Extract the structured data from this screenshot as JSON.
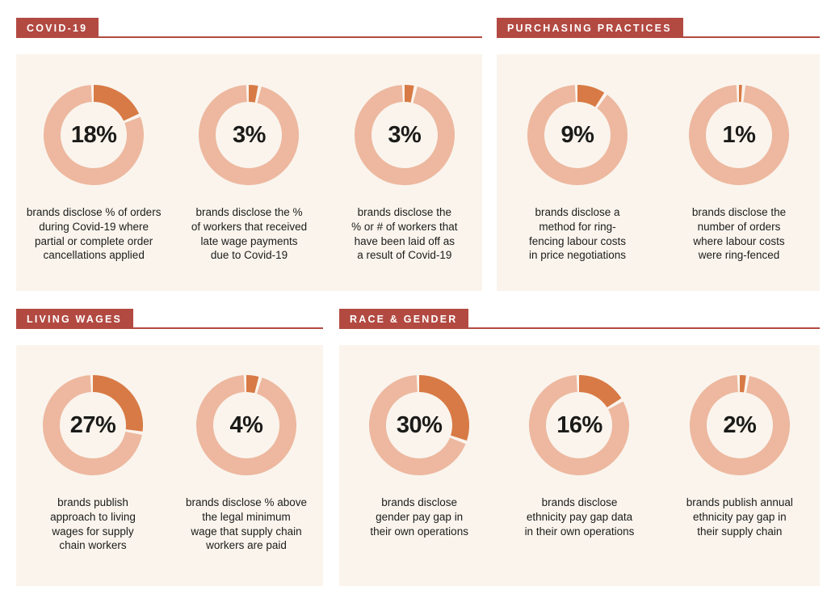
{
  "colors": {
    "accent_red": "#b24a42",
    "panel_background": "#faf4ed",
    "ring_light": "#edb89f",
    "ring_dark": "#d87a45",
    "text": "#1c1c1a"
  },
  "chart_data": [
    {
      "type": "pie",
      "variant": "donut",
      "title": "COVID-19",
      "values_pct": [
        18,
        3,
        3
      ],
      "labels": [
        "18%",
        "3%",
        "3%"
      ],
      "descriptions": [
        "brands disclose % of orders\nduring Covid-19 where\npartial or complete order\ncancellations applied",
        "brands disclose the %\nof workers that received\nlate wage payments\ndue to Covid-19",
        "brands disclose the\n% or # of workers that\nhave been laid off as\na result of Covid-19"
      ]
    },
    {
      "type": "pie",
      "variant": "donut",
      "title": "PURCHASING PRACTICES",
      "values_pct": [
        9,
        1
      ],
      "labels": [
        "9%",
        "1%"
      ],
      "descriptions": [
        "brands disclose a\nmethod for ring-\nfencing labour costs\nin price negotiations",
        "brands disclose the\nnumber of orders\nwhere labour costs\nwere ring-fenced"
      ]
    },
    {
      "type": "pie",
      "variant": "donut",
      "title": "LIVING WAGES",
      "values_pct": [
        27,
        4
      ],
      "labels": [
        "27%",
        "4%"
      ],
      "descriptions": [
        "brands publish\napproach to living\nwages for supply\nchain workers",
        "brands disclose % above\nthe legal minimum\nwage that supply chain\nworkers are paid"
      ]
    },
    {
      "type": "pie",
      "variant": "donut",
      "title": "RACE & GENDER",
      "values_pct": [
        30,
        16,
        2
      ],
      "labels": [
        "30%",
        "16%",
        "2%"
      ],
      "descriptions": [
        "brands disclose\ngender pay gap in\ntheir own operations",
        "brands disclose\nethnicity pay gap data\nin their own operations",
        "brands publish annual\nethnicity pay gap in\ntheir supply chain"
      ]
    }
  ]
}
